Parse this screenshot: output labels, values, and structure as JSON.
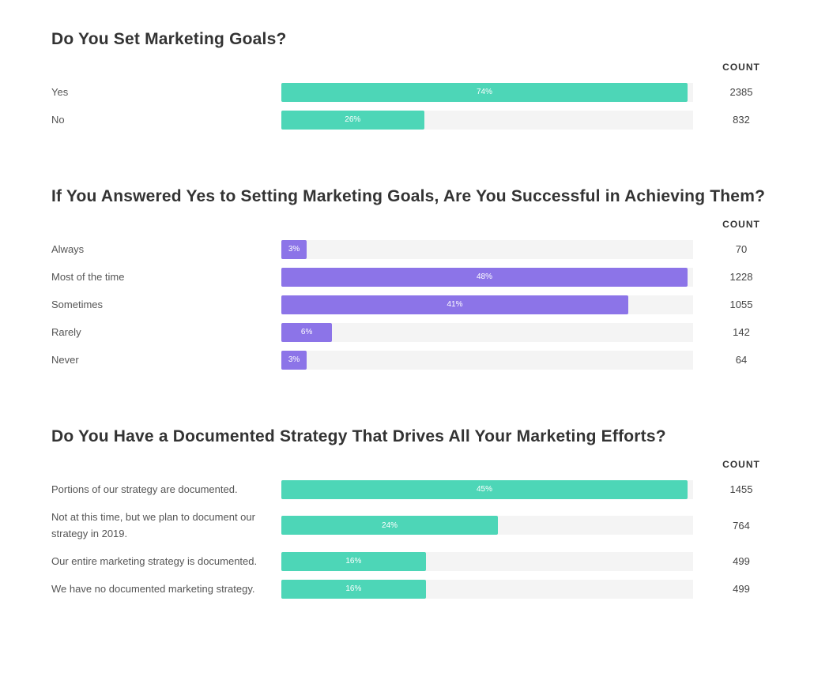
{
  "chart_data": [
    {
      "type": "bar",
      "title": "Do You Set Marketing Goals?",
      "count_header": "COUNT",
      "color": "#4dd6b7",
      "categories": [
        "Yes",
        "No"
      ],
      "values": [
        74,
        26
      ],
      "value_labels": [
        "74%",
        "26%"
      ],
      "counts": [
        2385,
        832
      ]
    },
    {
      "type": "bar",
      "title": "If You Answered Yes to Setting Marketing Goals, Are You Successful in Achieving Them?",
      "count_header": "COUNT",
      "color": "#8c74e8",
      "categories": [
        "Always",
        "Most of the time",
        "Sometimes",
        "Rarely",
        "Never"
      ],
      "values": [
        3,
        48,
        41,
        6,
        3
      ],
      "value_labels": [
        "3%",
        "48%",
        "41%",
        "6%",
        "3%"
      ],
      "counts": [
        70,
        1228,
        1055,
        142,
        64
      ]
    },
    {
      "type": "bar",
      "title": "Do You Have a Documented Strategy That Drives All Your Marketing Efforts?",
      "count_header": "COUNT",
      "color": "#4dd6b7",
      "categories": [
        "Portions of our strategy are documented.",
        "Not at this time, but we plan to document our strategy in 2019.",
        "Our entire marketing strategy is documented.",
        "We have no documented marketing strategy."
      ],
      "values": [
        45,
        24,
        16,
        16
      ],
      "value_labels": [
        "45%",
        "24%",
        "16%",
        "16%"
      ],
      "counts": [
        1455,
        764,
        499,
        499
      ]
    }
  ]
}
